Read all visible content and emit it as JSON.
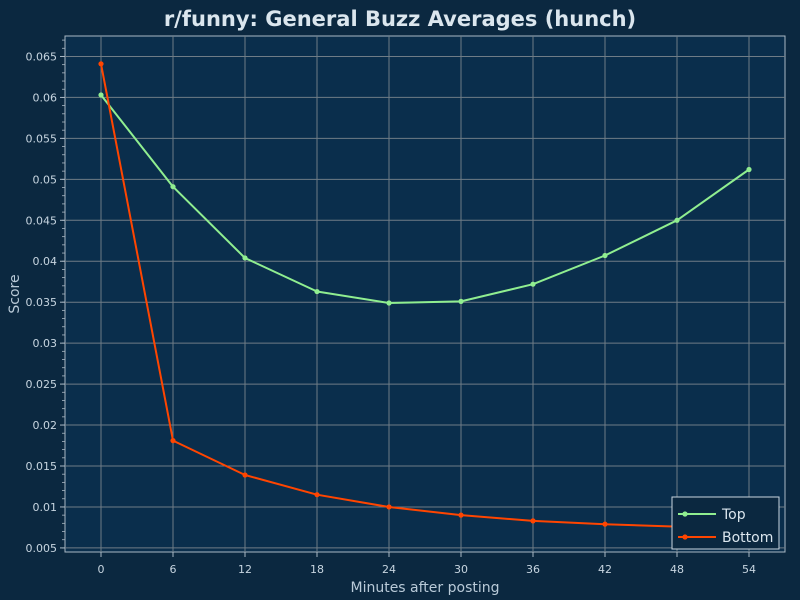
{
  "chart_data": {
    "type": "line",
    "title": "r/funny: General Buzz Averages (hunch)",
    "xlabel": "Minutes after posting",
    "ylabel": "Score",
    "x": [
      0,
      6,
      12,
      18,
      24,
      30,
      36,
      42,
      48,
      54
    ],
    "x_ticks": [
      "0",
      "6",
      "12",
      "18",
      "24",
      "30",
      "36",
      "42",
      "48",
      "54"
    ],
    "y_ticks": [
      "0.005",
      "0.01",
      "0.015",
      "0.02",
      "0.025",
      "0.03",
      "0.035",
      "0.04",
      "0.045",
      "0.05",
      "0.055",
      "0.06",
      "0.065"
    ],
    "xlim": [
      -3,
      57
    ],
    "ylim": [
      0.0045,
      0.0675
    ],
    "grid": true,
    "legend_position": "bottom-right",
    "series": [
      {
        "name": "Top",
        "color": "#90ee90",
        "values": [
          0.0603,
          0.0491,
          0.0404,
          0.0363,
          0.0349,
          0.0351,
          0.0372,
          0.0407,
          0.045,
          0.0512
        ]
      },
      {
        "name": "Bottom",
        "color": "#ff4500",
        "values": [
          0.0641,
          0.0181,
          0.0139,
          0.0115,
          0.01,
          0.009,
          0.0083,
          0.0079,
          0.0076,
          0.0073
        ]
      }
    ]
  },
  "colors": {
    "background": "#0b2840",
    "plot_background": "#0a2e4c",
    "grid": "#6f7c86",
    "axis": "#aab8c4"
  }
}
